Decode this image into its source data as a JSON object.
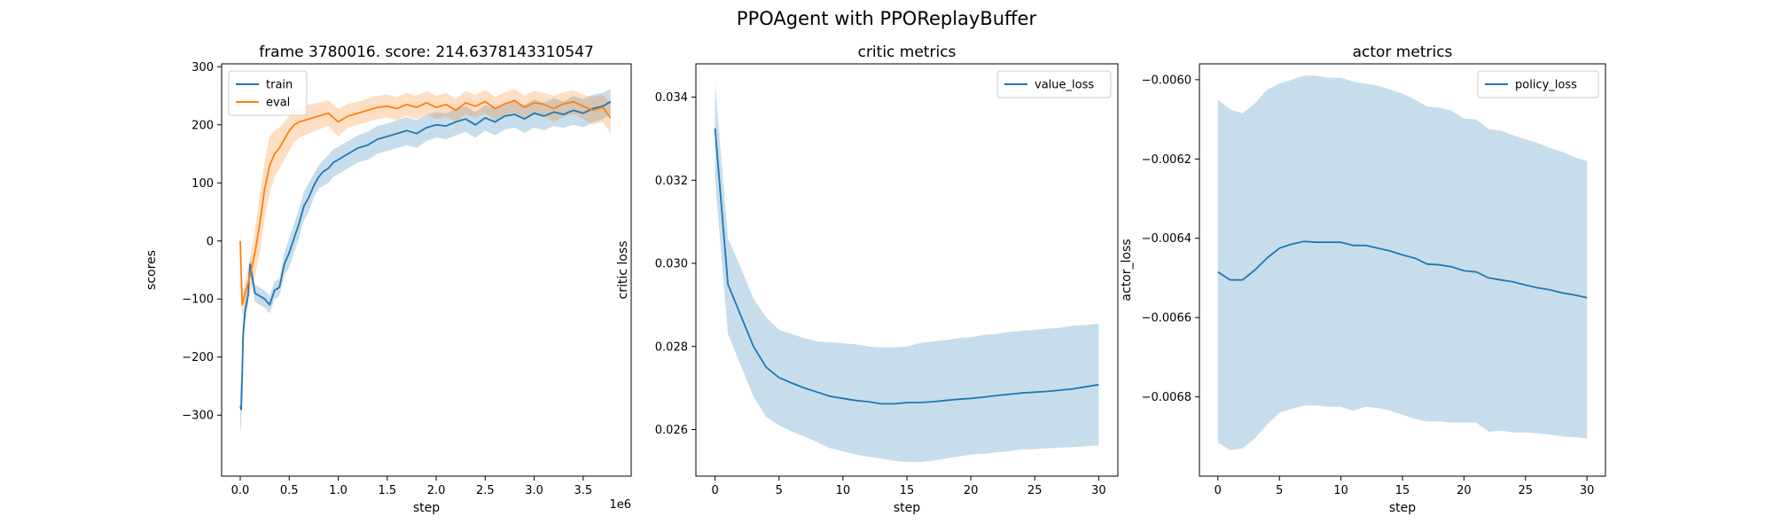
{
  "suptitle": "PPOAgent with PPOReplayBuffer",
  "colors": {
    "blue": "#1f77b4",
    "orange": "#ff7f0e"
  },
  "chart_data": [
    {
      "type": "line",
      "title": "frame 3780016. score: 214.6378143310547",
      "xlabel": "step",
      "ylabel": "scores",
      "x_offset_label": "1e6",
      "xlim": [
        -0.19,
        3.99
      ],
      "ylim": [
        -405,
        305
      ],
      "xticks": [
        0.0,
        0.5,
        1.0,
        1.5,
        2.0,
        2.5,
        3.0,
        3.5
      ],
      "xtick_labels": [
        "0.0",
        "0.5",
        "1.0",
        "1.5",
        "2.0",
        "2.5",
        "3.0",
        "3.5"
      ],
      "yticks": [
        -300,
        -200,
        -100,
        0,
        100,
        200,
        300
      ],
      "legend": "top-left",
      "series": [
        {
          "name": "train",
          "color": "#1f77b4",
          "x": [
            0.0,
            0.01,
            0.02,
            0.03,
            0.05,
            0.08,
            0.1,
            0.12,
            0.15,
            0.2,
            0.25,
            0.3,
            0.35,
            0.4,
            0.45,
            0.5,
            0.55,
            0.6,
            0.65,
            0.7,
            0.75,
            0.8,
            0.85,
            0.9,
            0.95,
            1.0,
            1.1,
            1.2,
            1.3,
            1.4,
            1.5,
            1.6,
            1.7,
            1.8,
            1.9,
            2.0,
            2.1,
            2.2,
            2.3,
            2.4,
            2.5,
            2.6,
            2.7,
            2.8,
            2.9,
            3.0,
            3.1,
            3.2,
            3.3,
            3.4,
            3.5,
            3.6,
            3.7,
            3.78
          ],
          "y": [
            -285,
            -290,
            -230,
            -160,
            -120,
            -95,
            -40,
            -60,
            -90,
            -95,
            -100,
            -110,
            -85,
            -80,
            -40,
            -20,
            5,
            30,
            60,
            75,
            95,
            110,
            120,
            125,
            135,
            140,
            150,
            160,
            165,
            175,
            180,
            185,
            190,
            185,
            195,
            200,
            198,
            205,
            210,
            200,
            212,
            205,
            215,
            218,
            210,
            220,
            215,
            222,
            218,
            225,
            220,
            228,
            232,
            240
          ],
          "lower": [
            -330,
            -320,
            -260,
            -190,
            -140,
            -110,
            -55,
            -75,
            -105,
            -110,
            -115,
            -125,
            -100,
            -95,
            -60,
            -45,
            -20,
            5,
            35,
            50,
            75,
            90,
            95,
            100,
            110,
            115,
            125,
            135,
            140,
            150,
            155,
            160,
            165,
            160,
            172,
            178,
            175,
            182,
            188,
            178,
            190,
            182,
            192,
            195,
            186,
            195,
            190,
            198,
            195,
            200,
            196,
            204,
            210,
            218
          ],
          "upper": [
            -240,
            -260,
            -200,
            -130,
            -100,
            -80,
            -25,
            -45,
            -75,
            -80,
            -85,
            -95,
            -70,
            -65,
            -20,
            5,
            30,
            55,
            85,
            100,
            115,
            130,
            140,
            148,
            158,
            162,
            172,
            182,
            188,
            198,
            202,
            208,
            213,
            208,
            218,
            222,
            220,
            228,
            232,
            222,
            234,
            228,
            238,
            240,
            234,
            244,
            238,
            246,
            240,
            250,
            244,
            252,
            255,
            262
          ]
        },
        {
          "name": "eval",
          "color": "#ff7f0e",
          "x": [
            0.0,
            0.02,
            0.05,
            0.1,
            0.15,
            0.2,
            0.25,
            0.3,
            0.35,
            0.4,
            0.45,
            0.5,
            0.55,
            0.6,
            0.7,
            0.8,
            0.9,
            1.0,
            1.1,
            1.2,
            1.3,
            1.4,
            1.5,
            1.6,
            1.7,
            1.8,
            1.9,
            2.0,
            2.1,
            2.2,
            2.3,
            2.4,
            2.5,
            2.6,
            2.7,
            2.8,
            2.9,
            3.0,
            3.1,
            3.2,
            3.3,
            3.4,
            3.5,
            3.6,
            3.7,
            3.78
          ],
          "y": [
            0,
            -110,
            -90,
            -60,
            -20,
            30,
            90,
            130,
            150,
            160,
            175,
            190,
            200,
            205,
            210,
            215,
            220,
            205,
            215,
            220,
            225,
            230,
            232,
            228,
            235,
            230,
            238,
            230,
            235,
            225,
            238,
            232,
            240,
            228,
            236,
            242,
            230,
            238,
            235,
            228,
            236,
            240,
            232,
            225,
            230,
            212
          ],
          "lower": [
            -20,
            -130,
            -110,
            -90,
            -60,
            -20,
            40,
            80,
            110,
            125,
            140,
            155,
            170,
            178,
            185,
            192,
            198,
            180,
            195,
            200,
            205,
            210,
            212,
            208,
            215,
            210,
            218,
            210,
            215,
            205,
            218,
            212,
            220,
            208,
            216,
            222,
            210,
            218,
            215,
            205,
            214,
            218,
            210,
            200,
            205,
            185
          ],
          "upper": [
            20,
            -90,
            -70,
            -30,
            20,
            80,
            140,
            180,
            190,
            195,
            205,
            215,
            225,
            230,
            235,
            238,
            242,
            228,
            236,
            240,
            245,
            250,
            252,
            248,
            255,
            250,
            258,
            250,
            255,
            245,
            258,
            252,
            260,
            248,
            256,
            262,
            250,
            258,
            255,
            250,
            256,
            260,
            252,
            248,
            252,
            238
          ]
        }
      ]
    },
    {
      "type": "line",
      "title": "critic metrics",
      "xlabel": "step",
      "ylabel": "critic loss",
      "xlim": [
        -1.5,
        31.5
      ],
      "ylim": [
        0.02488,
        0.0348
      ],
      "xticks": [
        0,
        5,
        10,
        15,
        20,
        25,
        30
      ],
      "xtick_labels": [
        "0",
        "5",
        "10",
        "15",
        "20",
        "25",
        "30"
      ],
      "yticks": [
        0.026,
        0.028,
        0.03,
        0.032,
        0.034
      ],
      "ytick_labels": [
        "0.026",
        "0.028",
        "0.030",
        "0.032",
        "0.034"
      ],
      "legend": "top-right",
      "series": [
        {
          "name": "value_loss",
          "color": "#1f77b4",
          "x": [
            0,
            1,
            2,
            3,
            4,
            5,
            6,
            7,
            8,
            9,
            10,
            11,
            12,
            13,
            14,
            15,
            16,
            17,
            18,
            19,
            20,
            21,
            22,
            23,
            24,
            25,
            26,
            27,
            28,
            29,
            30
          ],
          "y": [
            0.03325,
            0.0295,
            0.02875,
            0.028,
            0.0275,
            0.02725,
            0.02712,
            0.027,
            0.0269,
            0.0268,
            0.02675,
            0.0267,
            0.02667,
            0.02662,
            0.02662,
            0.02665,
            0.02665,
            0.02667,
            0.0267,
            0.02673,
            0.02675,
            0.02678,
            0.02682,
            0.02685,
            0.02688,
            0.0269,
            0.02692,
            0.02695,
            0.02698,
            0.02703,
            0.02708
          ],
          "lower": [
            0.032,
            0.0283,
            0.02755,
            0.0268,
            0.0263,
            0.0261,
            0.02595,
            0.02583,
            0.0257,
            0.02555,
            0.02548,
            0.0254,
            0.02535,
            0.0253,
            0.02525,
            0.02522,
            0.02522,
            0.02525,
            0.0253,
            0.02535,
            0.0254,
            0.02542,
            0.02545,
            0.02548,
            0.02552,
            0.02553,
            0.02555,
            0.02557,
            0.02558,
            0.0256,
            0.02562
          ],
          "upper": [
            0.03435,
            0.0306,
            0.0299,
            0.02915,
            0.0287,
            0.0284,
            0.0283,
            0.0282,
            0.02812,
            0.0281,
            0.02808,
            0.02805,
            0.028,
            0.02798,
            0.02798,
            0.028,
            0.02808,
            0.02812,
            0.02815,
            0.0282,
            0.02822,
            0.02828,
            0.0283,
            0.02835,
            0.02838,
            0.0284,
            0.02843,
            0.02845,
            0.0285,
            0.02852,
            0.02855
          ]
        }
      ]
    },
    {
      "type": "line",
      "title": "actor metrics",
      "xlabel": "step",
      "ylabel": "actor_loss",
      "xlim": [
        -1.5,
        31.5
      ],
      "ylim": [
        -0.007,
        -0.00596
      ],
      "xticks": [
        0,
        5,
        10,
        15,
        20,
        25,
        30
      ],
      "xtick_labels": [
        "0",
        "5",
        "10",
        "15",
        "20",
        "25",
        "30"
      ],
      "yticks": [
        -0.0068,
        -0.0066,
        -0.0064,
        -0.0062,
        -0.006
      ],
      "ytick_labels": [
        "−0.0068",
        "−0.0066",
        "−0.0064",
        "−0.0062",
        "−0.0060"
      ],
      "legend": "top-right",
      "series": [
        {
          "name": "policy_loss",
          "color": "#1f77b4",
          "x": [
            0,
            1,
            2,
            3,
            4,
            5,
            6,
            7,
            8,
            9,
            10,
            11,
            12,
            13,
            14,
            15,
            16,
            17,
            18,
            19,
            20,
            21,
            22,
            23,
            24,
            25,
            26,
            27,
            28,
            29,
            30
          ],
          "y": [
            -0.006485,
            -0.006505,
            -0.006505,
            -0.00648,
            -0.00645,
            -0.006425,
            -0.006415,
            -0.006408,
            -0.00641,
            -0.00641,
            -0.00641,
            -0.006418,
            -0.006418,
            -0.006425,
            -0.006432,
            -0.006442,
            -0.00645,
            -0.006465,
            -0.006467,
            -0.006472,
            -0.006482,
            -0.006485,
            -0.0065,
            -0.006505,
            -0.00651,
            -0.006518,
            -0.006525,
            -0.00653,
            -0.006538,
            -0.006543,
            -0.00655
          ],
          "lower": [
            -0.006915,
            -0.006935,
            -0.00693,
            -0.006905,
            -0.00687,
            -0.00684,
            -0.00683,
            -0.006822,
            -0.006822,
            -0.006825,
            -0.006825,
            -0.006835,
            -0.006825,
            -0.006828,
            -0.006835,
            -0.006845,
            -0.006855,
            -0.006862,
            -0.006862,
            -0.006865,
            -0.006865,
            -0.006865,
            -0.006888,
            -0.006885,
            -0.00689,
            -0.00689,
            -0.006892,
            -0.006895,
            -0.0069,
            -0.006902,
            -0.006905
          ],
          "upper": [
            -0.00605,
            -0.006075,
            -0.006085,
            -0.00606,
            -0.006025,
            -0.00601,
            -0.006,
            -0.00599,
            -0.00599,
            -0.005995,
            -0.005995,
            -0.006005,
            -0.00601,
            -0.006015,
            -0.006025,
            -0.006035,
            -0.00605,
            -0.006068,
            -0.00607,
            -0.006078,
            -0.006098,
            -0.0061,
            -0.006125,
            -0.006128,
            -0.00614,
            -0.00615,
            -0.00616,
            -0.006172,
            -0.006182,
            -0.006195,
            -0.006205
          ]
        }
      ]
    }
  ]
}
